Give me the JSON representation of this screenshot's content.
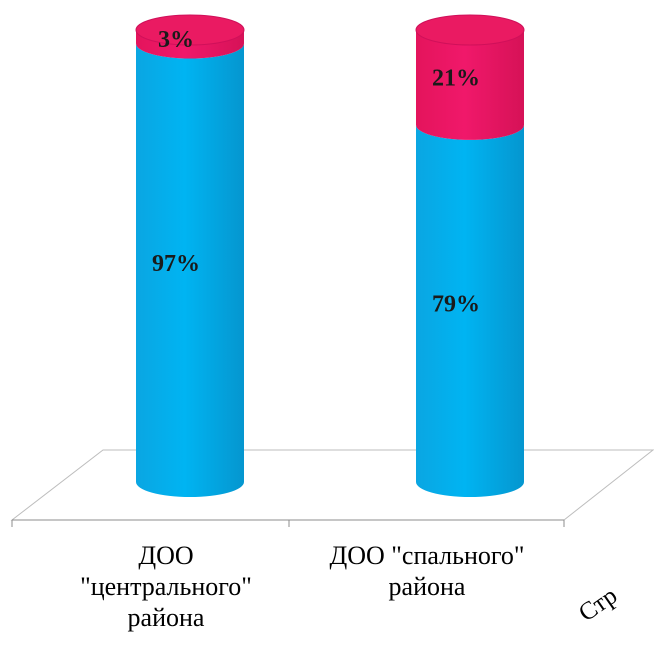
{
  "chart_data": {
    "type": "stacked-bar",
    "categories": [
      "ДОО\n\"центрального\"\nрайона",
      "ДОО \"спального\"\nрайона"
    ],
    "series": [
      {
        "values": [
          97,
          79
        ],
        "labels": [
          "97%",
          "79%"
        ]
      },
      {
        "values": [
          3,
          21
        ],
        "labels": [
          "3%",
          "21%"
        ]
      }
    ],
    "unit": "%",
    "ylim": [
      0,
      100
    ],
    "grid": false,
    "legend": "none",
    "colors": [
      "#00b0ef",
      "#ec1560"
    ]
  },
  "clipped_label": "Стр"
}
